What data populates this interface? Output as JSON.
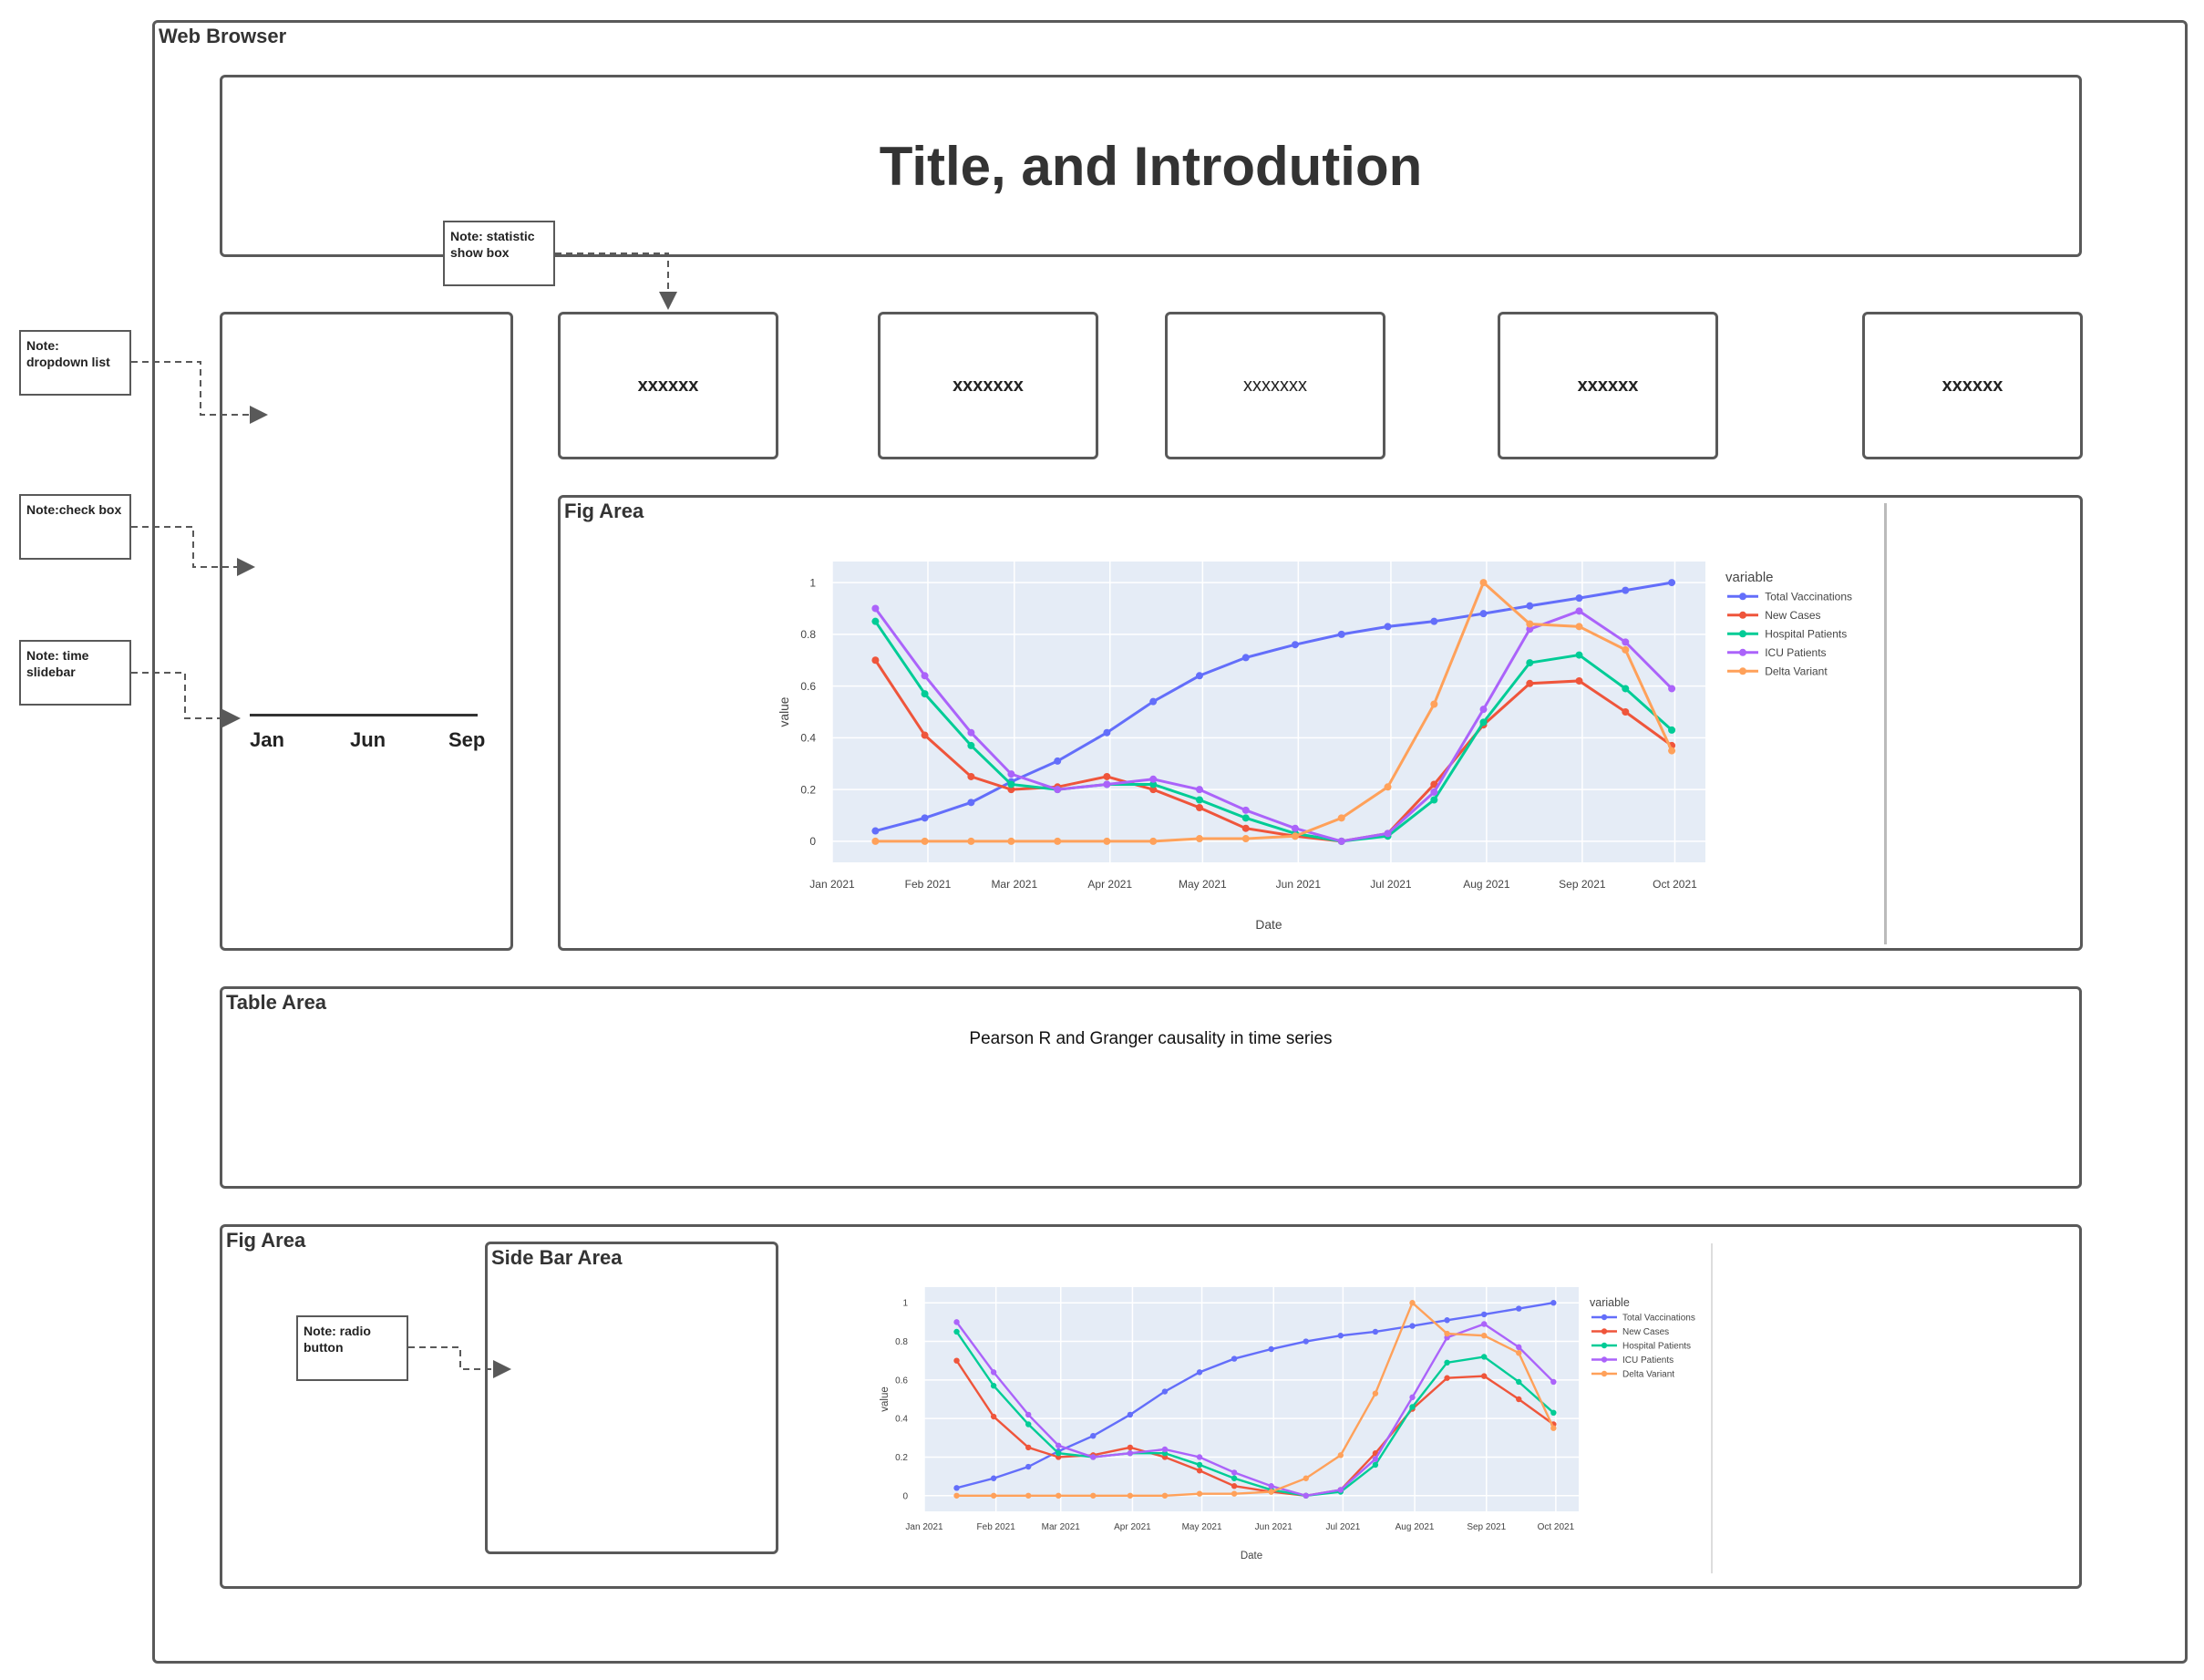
{
  "browser": {
    "label": "Web Browser"
  },
  "header": {
    "title": "Title, and Introdution"
  },
  "stats": [
    "xxxxxx",
    "xxxxxxx",
    "xxxxxxx",
    "xxxxxx",
    "xxxxxx"
  ],
  "left_panel": {
    "slider_ticks": [
      "Jan",
      "Jun",
      "Sep"
    ]
  },
  "fig_area_1": {
    "label": "Fig Area"
  },
  "table_area": {
    "label": "Table Area",
    "text": "Pearson R and Granger causality in time series"
  },
  "fig_area_2": {
    "label": "Fig Area",
    "sidebar_label": "Side Bar Area"
  },
  "notes": {
    "statistic": "Note: statistic show box",
    "dropdown": "Note: dropdown list",
    "checkbox": "Note:check box",
    "slidebar": "Note: time slidebar",
    "radio": "Note: radio button"
  },
  "colors": {
    "border": "#595959",
    "plot_bg": "#E5ECF6",
    "total_vaccinations": "#636EFA",
    "new_cases": "#EF553B",
    "hospital_patients": "#00CC96",
    "icu_patients": "#AB63FA",
    "delta_variant": "#FFA15A"
  },
  "chart_data": [
    {
      "type": "line",
      "xlabel": "Date",
      "ylabel": "value",
      "ylim": [
        0,
        1
      ],
      "x_ticks": [
        "Jan 2021",
        "Feb 2021",
        "Mar 2021",
        "Apr 2021",
        "May 2021",
        "Jun 2021",
        "Jul 2021",
        "Aug 2021",
        "Sep 2021",
        "Oct 2021"
      ],
      "y_ticks": [
        "0",
        "0.2",
        "0.4",
        "0.6",
        "0.8",
        "1"
      ],
      "legend_title": "variable",
      "legend_position": "right",
      "x": [
        "2021-01-15",
        "2021-01-31",
        "2021-02-15",
        "2021-02-28",
        "2021-03-15",
        "2021-03-31",
        "2021-04-15",
        "2021-04-30",
        "2021-05-15",
        "2021-05-31",
        "2021-06-15",
        "2021-06-30",
        "2021-07-15",
        "2021-07-31",
        "2021-08-15",
        "2021-08-31",
        "2021-09-15",
        "2021-09-30"
      ],
      "series": [
        {
          "name": "Total Vaccinations",
          "values": [
            0.04,
            0.09,
            0.15,
            0.23,
            0.31,
            0.42,
            0.54,
            0.64,
            0.71,
            0.76,
            0.8,
            0.83,
            0.85,
            0.88,
            0.91,
            0.94,
            0.97,
            1.0
          ]
        },
        {
          "name": "New Cases",
          "values": [
            0.7,
            0.41,
            0.25,
            0.2,
            0.21,
            0.25,
            0.2,
            0.13,
            0.05,
            0.02,
            0.0,
            0.03,
            0.22,
            0.45,
            0.61,
            0.62,
            0.5,
            0.37
          ]
        },
        {
          "name": "Hospital Patients",
          "values": [
            0.85,
            0.57,
            0.37,
            0.22,
            0.2,
            0.22,
            0.22,
            0.16,
            0.09,
            0.03,
            0.0,
            0.02,
            0.16,
            0.46,
            0.69,
            0.72,
            0.59,
            0.43
          ]
        },
        {
          "name": "ICU Patients",
          "values": [
            0.9,
            0.64,
            0.42,
            0.26,
            0.2,
            0.22,
            0.24,
            0.2,
            0.12,
            0.05,
            0.0,
            0.03,
            0.19,
            0.51,
            0.82,
            0.89,
            0.77,
            0.59
          ]
        },
        {
          "name": "Delta Variant",
          "values": [
            0.0,
            0.0,
            0.0,
            0.0,
            0.0,
            0.0,
            0.0,
            0.01,
            0.01,
            0.02,
            0.09,
            0.21,
            0.53,
            1.0,
            0.84,
            0.83,
            0.74,
            0.35
          ]
        }
      ]
    },
    {
      "type": "line",
      "xlabel": "Date",
      "ylabel": "value",
      "ylim": [
        0,
        1
      ],
      "x_ticks": [
        "Jan 2021",
        "Feb 2021",
        "Mar 2021",
        "Apr 2021",
        "May 2021",
        "Jun 2021",
        "Jul 2021",
        "Aug 2021",
        "Sep 2021",
        "Oct 2021"
      ],
      "y_ticks": [
        "0",
        "0.2",
        "0.4",
        "0.6",
        "0.8",
        "1"
      ],
      "legend_title": "variable",
      "legend_position": "right",
      "x": [
        "2021-01-15",
        "2021-01-31",
        "2021-02-15",
        "2021-02-28",
        "2021-03-15",
        "2021-03-31",
        "2021-04-15",
        "2021-04-30",
        "2021-05-15",
        "2021-05-31",
        "2021-06-15",
        "2021-06-30",
        "2021-07-15",
        "2021-07-31",
        "2021-08-15",
        "2021-08-31",
        "2021-09-15",
        "2021-09-30"
      ],
      "series": [
        {
          "name": "Total Vaccinations",
          "values": [
            0.04,
            0.09,
            0.15,
            0.23,
            0.31,
            0.42,
            0.54,
            0.64,
            0.71,
            0.76,
            0.8,
            0.83,
            0.85,
            0.88,
            0.91,
            0.94,
            0.97,
            1.0
          ]
        },
        {
          "name": "New Cases",
          "values": [
            0.7,
            0.41,
            0.25,
            0.2,
            0.21,
            0.25,
            0.2,
            0.13,
            0.05,
            0.02,
            0.0,
            0.03,
            0.22,
            0.45,
            0.61,
            0.62,
            0.5,
            0.37
          ]
        },
        {
          "name": "Hospital Patients",
          "values": [
            0.85,
            0.57,
            0.37,
            0.22,
            0.2,
            0.22,
            0.22,
            0.16,
            0.09,
            0.03,
            0.0,
            0.02,
            0.16,
            0.46,
            0.69,
            0.72,
            0.59,
            0.43
          ]
        },
        {
          "name": "ICU Patients",
          "values": [
            0.9,
            0.64,
            0.42,
            0.26,
            0.2,
            0.22,
            0.24,
            0.2,
            0.12,
            0.05,
            0.0,
            0.03,
            0.19,
            0.51,
            0.82,
            0.89,
            0.77,
            0.59
          ]
        },
        {
          "name": "Delta Variant",
          "values": [
            0.0,
            0.0,
            0.0,
            0.0,
            0.0,
            0.0,
            0.0,
            0.01,
            0.01,
            0.02,
            0.09,
            0.21,
            0.53,
            1.0,
            0.84,
            0.83,
            0.74,
            0.35
          ]
        }
      ]
    }
  ]
}
